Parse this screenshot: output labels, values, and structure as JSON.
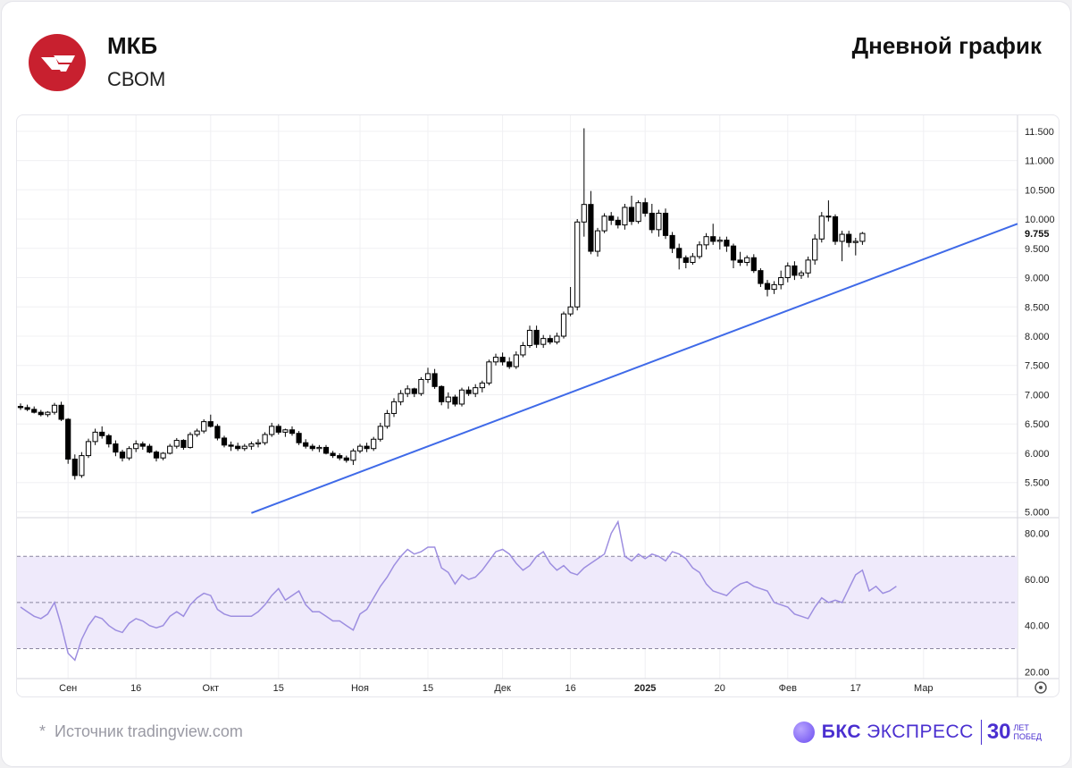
{
  "header": {
    "ticker": "МКБ",
    "exchange": "СВОМ",
    "title": "Дневной график"
  },
  "footer": {
    "source": "Источник tradingview.com",
    "brand_name": "БКС",
    "brand_name2": "ЭКСПРЕСС",
    "brand_num": "30",
    "brand_small_1": "ЛЕТ",
    "brand_small_2": "ПОБЕД"
  },
  "colors": {
    "up_candle": "#ffffff",
    "down_candle": "#000000",
    "trendline": "#3f6ae8",
    "rsi_line": "#9d8ee0",
    "rsi_band": "#efeafb",
    "brand": "#4a2fd0",
    "logo": "#c8202f"
  },
  "chart_data": [
    {
      "type": "candlestick",
      "ylim": [
        4.9,
        11.65
      ],
      "y_ticks": [
        "5.000",
        "5.500",
        "6.000",
        "6.500",
        "7.000",
        "7.500",
        "8.000",
        "8.500",
        "9.000",
        "9.500",
        "10.000",
        "10.500",
        "11.000",
        "11.500"
      ],
      "y_tick_values": [
        5.0,
        5.5,
        6.0,
        6.5,
        7.0,
        7.5,
        8.0,
        8.5,
        9.0,
        9.5,
        10.0,
        10.5,
        11.0,
        11.5
      ],
      "last_price_label": "9.755",
      "last_price": 9.755,
      "x_ticks": [
        {
          "label": "Сен",
          "index": 7,
          "bold": false
        },
        {
          "label": "16",
          "index": 17,
          "bold": false
        },
        {
          "label": "Окт",
          "index": 28,
          "bold": false
        },
        {
          "label": "15",
          "index": 38,
          "bold": false
        },
        {
          "label": "Ноя",
          "index": 50,
          "bold": false
        },
        {
          "label": "15",
          "index": 60,
          "bold": false
        },
        {
          "label": "Дек",
          "index": 71,
          "bold": false
        },
        {
          "label": "16",
          "index": 81,
          "bold": false
        },
        {
          "label": "2025",
          "index": 92,
          "bold": true
        },
        {
          "label": "20",
          "index": 103,
          "bold": false
        },
        {
          "label": "Фев",
          "index": 113,
          "bold": false
        },
        {
          "label": "17",
          "index": 123,
          "bold": false
        },
        {
          "label": "Мар",
          "index": 133,
          "bold": false
        }
      ],
      "candles": [
        [
          6.8,
          6.85,
          6.74,
          6.78
        ],
        [
          6.78,
          6.83,
          6.72,
          6.75
        ],
        [
          6.75,
          6.8,
          6.68,
          6.7
        ],
        [
          6.7,
          6.74,
          6.63,
          6.66
        ],
        [
          6.66,
          6.72,
          6.62,
          6.7
        ],
        [
          6.7,
          6.86,
          6.66,
          6.82
        ],
        [
          6.82,
          6.88,
          6.55,
          6.58
        ],
        [
          6.58,
          6.6,
          5.82,
          5.9
        ],
        [
          5.9,
          5.98,
          5.55,
          5.62
        ],
        [
          5.62,
          6.02,
          5.58,
          5.96
        ],
        [
          5.96,
          6.25,
          5.92,
          6.2
        ],
        [
          6.2,
          6.42,
          6.14,
          6.36
        ],
        [
          6.36,
          6.46,
          6.25,
          6.3
        ],
        [
          6.3,
          6.33,
          6.1,
          6.16
        ],
        [
          6.16,
          6.22,
          5.95,
          6.02
        ],
        [
          6.02,
          6.06,
          5.86,
          5.92
        ],
        [
          5.92,
          6.12,
          5.88,
          6.08
        ],
        [
          6.08,
          6.22,
          6.02,
          6.16
        ],
        [
          6.16,
          6.2,
          6.06,
          6.12
        ],
        [
          6.12,
          6.16,
          6.0,
          6.02
        ],
        [
          6.02,
          6.05,
          5.86,
          5.92
        ],
        [
          5.92,
          6.02,
          5.88,
          6.0
        ],
        [
          6.0,
          6.16,
          5.98,
          6.12
        ],
        [
          6.12,
          6.26,
          6.08,
          6.22
        ],
        [
          6.22,
          6.24,
          6.06,
          6.1
        ],
        [
          6.1,
          6.36,
          6.08,
          6.32
        ],
        [
          6.32,
          6.42,
          6.28,
          6.38
        ],
        [
          6.38,
          6.58,
          6.34,
          6.54
        ],
        [
          6.54,
          6.66,
          6.44,
          6.46
        ],
        [
          6.46,
          6.5,
          6.22,
          6.26
        ],
        [
          6.26,
          6.3,
          6.1,
          6.14
        ],
        [
          6.14,
          6.2,
          6.04,
          6.12
        ],
        [
          6.12,
          6.18,
          6.04,
          6.08
        ],
        [
          6.08,
          6.16,
          6.04,
          6.12
        ],
        [
          6.12,
          6.2,
          6.06,
          6.16
        ],
        [
          6.16,
          6.24,
          6.1,
          6.18
        ],
        [
          6.18,
          6.36,
          6.14,
          6.32
        ],
        [
          6.32,
          6.52,
          6.28,
          6.46
        ],
        [
          6.46,
          6.5,
          6.32,
          6.36
        ],
        [
          6.36,
          6.42,
          6.28,
          6.4
        ],
        [
          6.4,
          6.46,
          6.3,
          6.34
        ],
        [
          6.34,
          6.38,
          6.14,
          6.18
        ],
        [
          6.18,
          6.24,
          6.08,
          6.12
        ],
        [
          6.12,
          6.16,
          6.04,
          6.08
        ],
        [
          6.08,
          6.14,
          6.02,
          6.1
        ],
        [
          6.1,
          6.14,
          5.98,
          6.0
        ],
        [
          6.0,
          6.04,
          5.92,
          5.96
        ],
        [
          5.96,
          6.0,
          5.88,
          5.92
        ],
        [
          5.92,
          5.96,
          5.84,
          5.88
        ],
        [
          5.88,
          6.08,
          5.8,
          6.04
        ],
        [
          6.04,
          6.16,
          6.0,
          6.12
        ],
        [
          6.12,
          6.18,
          6.02,
          6.08
        ],
        [
          6.08,
          6.28,
          6.04,
          6.24
        ],
        [
          6.24,
          6.52,
          6.2,
          6.46
        ],
        [
          6.46,
          6.74,
          6.42,
          6.68
        ],
        [
          6.68,
          6.94,
          6.62,
          6.88
        ],
        [
          6.88,
          7.08,
          6.82,
          7.02
        ],
        [
          7.02,
          7.16,
          6.96,
          7.1
        ],
        [
          7.1,
          7.12,
          6.96,
          7.02
        ],
        [
          7.02,
          7.3,
          6.98,
          7.26
        ],
        [
          7.26,
          7.46,
          7.2,
          7.36
        ],
        [
          7.36,
          7.44,
          7.1,
          7.14
        ],
        [
          7.14,
          7.16,
          6.82,
          6.88
        ],
        [
          6.88,
          7.04,
          6.76,
          6.96
        ],
        [
          6.96,
          7.0,
          6.8,
          6.84
        ],
        [
          6.84,
          7.12,
          6.8,
          7.08
        ],
        [
          7.08,
          7.14,
          6.98,
          7.02
        ],
        [
          7.02,
          7.18,
          6.96,
          7.12
        ],
        [
          7.12,
          7.24,
          7.04,
          7.2
        ],
        [
          7.2,
          7.6,
          7.16,
          7.56
        ],
        [
          7.56,
          7.7,
          7.5,
          7.64
        ],
        [
          7.64,
          7.72,
          7.5,
          7.56
        ],
        [
          7.56,
          7.64,
          7.44,
          7.48
        ],
        [
          7.48,
          7.74,
          7.44,
          7.68
        ],
        [
          7.68,
          7.9,
          7.64,
          7.84
        ],
        [
          7.84,
          8.18,
          7.8,
          8.1
        ],
        [
          8.1,
          8.18,
          7.8,
          7.86
        ],
        [
          7.86,
          8.02,
          7.8,
          7.96
        ],
        [
          7.96,
          8.02,
          7.86,
          7.9
        ],
        [
          7.9,
          8.06,
          7.86,
          8.0
        ],
        [
          8.0,
          8.42,
          7.96,
          8.38
        ],
        [
          8.38,
          8.84,
          8.34,
          8.5
        ],
        [
          8.5,
          10.0,
          8.44,
          9.95
        ],
        [
          9.95,
          11.55,
          9.7,
          10.25
        ],
        [
          10.25,
          10.48,
          9.4,
          9.45
        ],
        [
          9.45,
          9.85,
          9.36,
          9.8
        ],
        [
          9.8,
          10.1,
          9.76,
          10.05
        ],
        [
          10.05,
          10.12,
          9.9,
          9.98
        ],
        [
          9.98,
          10.04,
          9.84,
          9.9
        ],
        [
          9.9,
          10.26,
          9.82,
          10.2
        ],
        [
          10.2,
          10.4,
          9.9,
          9.96
        ],
        [
          9.96,
          10.32,
          9.92,
          10.28
        ],
        [
          10.28,
          10.36,
          10.04,
          10.1
        ],
        [
          10.1,
          10.26,
          9.76,
          9.82
        ],
        [
          9.82,
          10.16,
          9.7,
          10.1
        ],
        [
          10.1,
          10.18,
          9.66,
          9.72
        ],
        [
          9.72,
          9.78,
          9.42,
          9.5
        ],
        [
          9.5,
          9.58,
          9.14,
          9.34
        ],
        [
          9.34,
          9.38,
          9.16,
          9.26
        ],
        [
          9.26,
          9.42,
          9.22,
          9.36
        ],
        [
          9.36,
          9.62,
          9.32,
          9.56
        ],
        [
          9.56,
          9.76,
          9.48,
          9.7
        ],
        [
          9.7,
          9.92,
          9.56,
          9.62
        ],
        [
          9.62,
          9.7,
          9.48,
          9.64
        ],
        [
          9.64,
          9.7,
          9.44,
          9.54
        ],
        [
          9.54,
          9.58,
          9.16,
          9.3
        ],
        [
          9.3,
          9.44,
          9.2,
          9.26
        ],
        [
          9.26,
          9.38,
          9.2,
          9.34
        ],
        [
          9.34,
          9.4,
          9.08,
          9.12
        ],
        [
          9.12,
          9.16,
          8.84,
          8.9
        ],
        [
          8.9,
          8.96,
          8.68,
          8.8
        ],
        [
          8.8,
          8.94,
          8.72,
          8.88
        ],
        [
          8.88,
          9.12,
          8.8,
          9.0
        ],
        [
          9.0,
          9.26,
          8.92,
          9.2
        ],
        [
          9.2,
          9.28,
          8.96,
          9.04
        ],
        [
          9.04,
          9.12,
          8.98,
          9.08
        ],
        [
          9.08,
          9.36,
          9.0,
          9.3
        ],
        [
          9.3,
          9.74,
          9.22,
          9.66
        ],
        [
          9.66,
          10.12,
          9.6,
          10.05
        ],
        [
          10.05,
          10.32,
          9.96,
          10.04
        ],
        [
          10.04,
          10.08,
          9.56,
          9.62
        ],
        [
          9.62,
          9.8,
          9.28,
          9.74
        ],
        [
          9.74,
          9.8,
          9.52,
          9.6
        ],
        [
          9.6,
          9.68,
          9.38,
          9.62
        ],
        [
          9.62,
          9.78,
          9.56,
          9.755
        ]
      ]
    },
    {
      "type": "line",
      "name": "",
      "ylim": [
        17,
        86
      ],
      "y_ticks": [
        "20.00",
        "40.00",
        "60.00",
        "80.00"
      ],
      "y_tick_values": [
        20,
        40,
        60,
        80
      ],
      "band": [
        30,
        70
      ],
      "midline": 50,
      "values": [
        48,
        46,
        44,
        43,
        45,
        50,
        40,
        28,
        25,
        34,
        40,
        44,
        43,
        40,
        38,
        37,
        41,
        43,
        42,
        40,
        39,
        40,
        44,
        46,
        44,
        49,
        52,
        54,
        53,
        47,
        45,
        44,
        44,
        44,
        44,
        46,
        49,
        53,
        56,
        51,
        53,
        55,
        49,
        46,
        46,
        44,
        42,
        42,
        40,
        38,
        45,
        47,
        52,
        57,
        61,
        66,
        70,
        73,
        71,
        72,
        74,
        74,
        65,
        63,
        58,
        62,
        60,
        61,
        64,
        68,
        72,
        73,
        71,
        67,
        64,
        66,
        70,
        72,
        67,
        64,
        66,
        63,
        62,
        65,
        67,
        69,
        71,
        80,
        85,
        70,
        68,
        71,
        69,
        71,
        70,
        68,
        72,
        71,
        69,
        65,
        63,
        58,
        55,
        54,
        53,
        56,
        58,
        59,
        57,
        56,
        55,
        50,
        49,
        48,
        45,
        44,
        43,
        48,
        52,
        50,
        51,
        50,
        56,
        62,
        64,
        55,
        57,
        54,
        55,
        57
      ],
      "x_ticks_shared": true
    }
  ]
}
